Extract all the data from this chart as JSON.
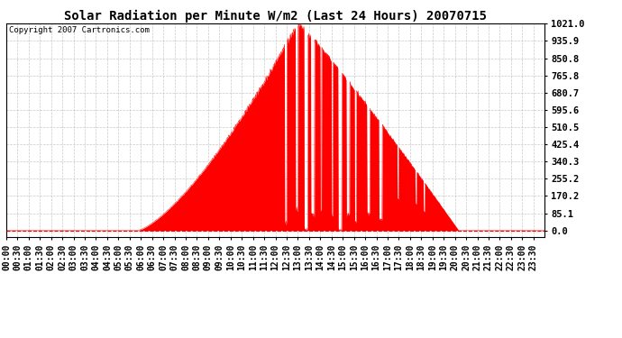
{
  "title": "Solar Radiation per Minute W/m2 (Last 24 Hours) 20070715",
  "copyright": "Copyright 2007 Cartronics.com",
  "yticks": [
    0.0,
    85.1,
    170.2,
    255.2,
    340.3,
    425.4,
    510.5,
    595.6,
    680.7,
    765.8,
    850.8,
    935.9,
    1021.0
  ],
  "ymax": 1021.0,
  "ymin": 0.0,
  "fill_color": "#FF0000",
  "line_color": "#FF0000",
  "dashed_line_color": "#FF0000",
  "grid_color": "#BBBBBB",
  "background_color": "#FFFFFF",
  "title_fontsize": 10,
  "copyright_fontsize": 6.5,
  "tick_fontsize": 7.5
}
